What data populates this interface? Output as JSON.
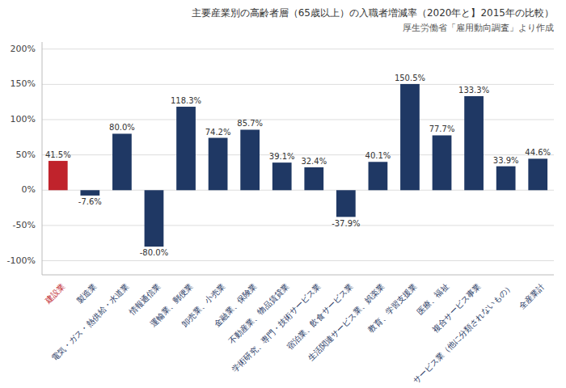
{
  "chart_data": {
    "type": "bar",
    "title": "主要産業別の高齢者層（65歳以上）の入職者増減率（2020年と】2015年の比較）",
    "subtitle": "厚生労働省「雇用動向調査」より作成",
    "categories": [
      "建設業",
      "製造業",
      "電気・ガス・熱供給・水道業",
      "情報通信業",
      "運輸業、郵便業",
      "卸売業、小売業",
      "金融業、保険業",
      "不動産業、物品賃貸業",
      "学術研究、専門・技術サービス業",
      "宿泊業、飲食サービス業",
      "生活関連サービス業、娯楽業",
      "教育、学習支援業",
      "医療、福祉",
      "複合サービス事業",
      "サービス業（他に分類されないもの）",
      "全産業計"
    ],
    "values": [
      41.5,
      -7.6,
      80.0,
      -80.0,
      118.3,
      74.2,
      85.7,
      39.1,
      32.4,
      -37.9,
      40.1,
      150.5,
      77.7,
      133.3,
      33.9,
      44.6
    ],
    "value_labels": [
      "41.5%",
      "-7.6%",
      "80.0%",
      "-80.0%",
      "118.3%",
      "74.2%",
      "85.7%",
      "39.1%",
      "32.4%",
      "-37.9%",
      "40.1%",
      "150.5%",
      "77.7%",
      "133.3%",
      "33.9%",
      "44.6%"
    ],
    "data_labels": true,
    "colors": [
      "#c0232c",
      "#1f3864",
      "#1f3864",
      "#1f3864",
      "#1f3864",
      "#1f3864",
      "#1f3864",
      "#1f3864",
      "#1f3864",
      "#1f3864",
      "#1f3864",
      "#1f3864",
      "#1f3864",
      "#1f3864",
      "#1f3864",
      "#1f3864"
    ],
    "ylim": [
      -120,
      210
    ],
    "yticks": [
      {
        "value": -100,
        "label": "-100%"
      },
      {
        "value": -50,
        "label": "-50%"
      },
      {
        "value": 0,
        "label": "0%"
      },
      {
        "value": 50,
        "label": "50%"
      },
      {
        "value": 100,
        "label": "100%"
      },
      {
        "value": 150,
        "label": "150%"
      },
      {
        "value": 200,
        "label": "200%"
      }
    ],
    "grid": true
  }
}
